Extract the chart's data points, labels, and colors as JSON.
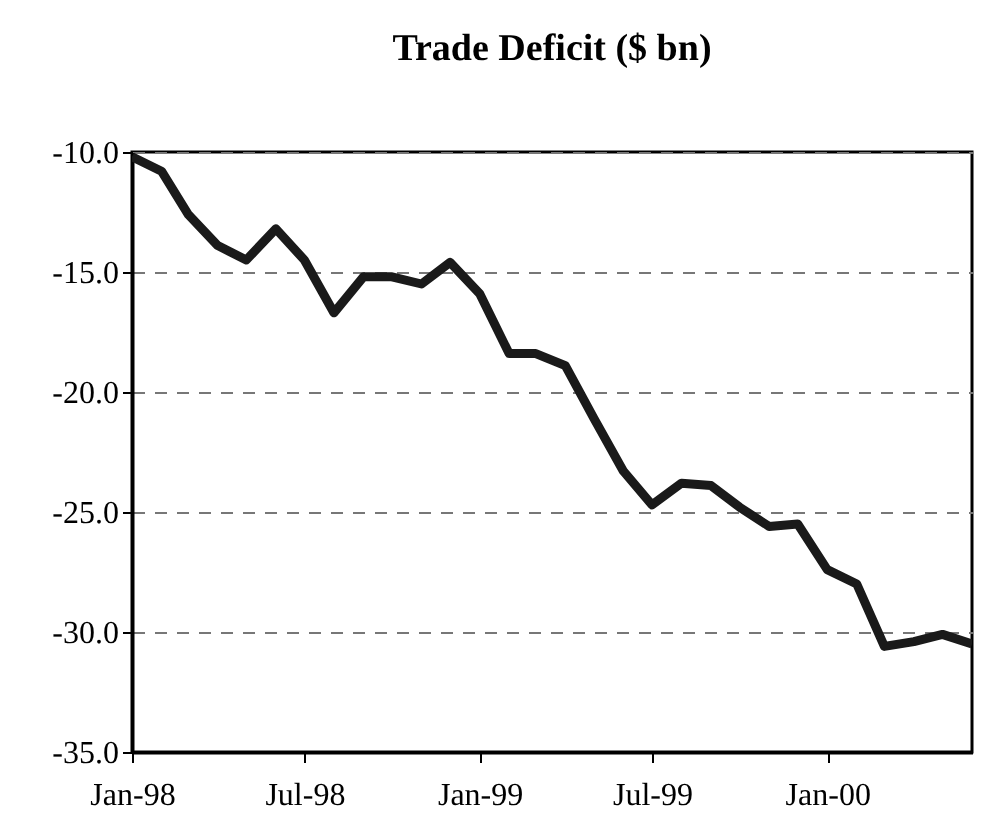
{
  "chart_data": {
    "type": "line",
    "title": "Trade Deficit ($ bn)",
    "x": [
      "1998-01",
      "1998-02",
      "1998-03",
      "1998-04",
      "1998-05",
      "1998-06",
      "1998-07",
      "1998-08",
      "1998-09",
      "1998-10",
      "1998-11",
      "1998-12",
      "1999-01",
      "1999-02",
      "1999-03",
      "1999-04",
      "1999-05",
      "1999-06",
      "1999-07",
      "1999-08",
      "1999-09",
      "1999-10",
      "1999-11",
      "1999-12",
      "2000-01",
      "2000-02",
      "2000-03",
      "2000-04",
      "2000-05",
      "2000-06"
    ],
    "series": [
      {
        "color": "#1a1a1a",
        "values": [
          -10.2,
          -10.8,
          -12.6,
          -13.9,
          -14.5,
          -13.2,
          -14.5,
          -16.7,
          -15.2,
          -15.2,
          -15.5,
          -14.6,
          -15.9,
          -18.4,
          -18.4,
          -18.9,
          -21.1,
          -23.3,
          -24.7,
          -23.8,
          -23.9,
          -24.8,
          -25.6,
          -25.5,
          -27.4,
          -28.0,
          -30.6,
          -30.4,
          -30.1,
          -30.5
        ]
      }
    ],
    "xlim": [
      "1998-01",
      "2000-06"
    ],
    "xticks": [
      {
        "value": "1998-01",
        "label": "Jan-98"
      },
      {
        "value": "1998-07",
        "label": "Jul-98"
      },
      {
        "value": "1999-01",
        "label": "Jan-99"
      },
      {
        "value": "1999-07",
        "label": "Jul-99"
      },
      {
        "value": "2000-01",
        "label": "Jan-00"
      }
    ],
    "ylim": [
      -35,
      -10
    ],
    "yticks": [
      {
        "value": -10,
        "label": "-10.0"
      },
      {
        "value": -15,
        "label": "-15.0"
      },
      {
        "value": -20,
        "label": "-20.0"
      },
      {
        "value": -25,
        "label": "-25.0"
      },
      {
        "value": -30,
        "label": "-30.0"
      },
      {
        "value": -35,
        "label": "-35.0"
      }
    ],
    "grid": "y",
    "line_style": "solid",
    "marker": "none"
  }
}
